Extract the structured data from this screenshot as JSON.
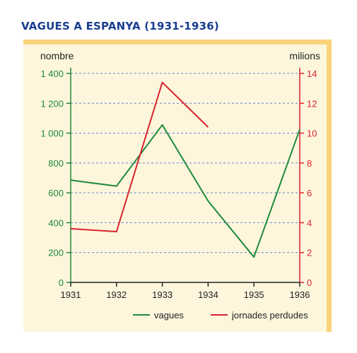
{
  "title": "VAGUES A ESPANYA (1931-1936)",
  "colors": {
    "title": "#1a3d8f",
    "panel": "#fdf6dd",
    "panel_border": "#f9d27a",
    "grid": "#6a82c9",
    "left_axis": "#1e8a3a",
    "right_axis": "#d9242d"
  },
  "chart_data": {
    "type": "line",
    "x": [
      "1931",
      "1932",
      "1933",
      "1934",
      "1935",
      "1936"
    ],
    "y_left_label": "nombre",
    "y_right_label": "milions",
    "y_left_lim": [
      0,
      1400
    ],
    "y_right_lim": [
      0,
      14
    ],
    "y_left_ticks": [
      "0",
      "200",
      "400",
      "600",
      "800",
      "1 000",
      "1 200",
      "1 400"
    ],
    "y_right_ticks": [
      "0",
      "2",
      "4",
      "6",
      "8",
      "10",
      "12",
      "14"
    ],
    "grid": true,
    "legend_position": "bottom-right",
    "series": [
      {
        "name": "vagues",
        "axis": "left",
        "color": "#1e8a3a",
        "values": [
          685,
          645,
          1055,
          545,
          170,
          1025
        ]
      },
      {
        "name": "jornades perdudes",
        "axis": "right",
        "color": "#d9242d",
        "values": [
          3.6,
          3.4,
          13.4,
          10.4,
          null,
          null
        ]
      }
    ]
  }
}
